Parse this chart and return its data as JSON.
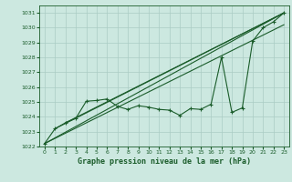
{
  "xlabel": "Graphe pression niveau de la mer (hPa)",
  "xlim": [
    -0.5,
    23.5
  ],
  "ylim": [
    1022,
    1031.5
  ],
  "yticks": [
    1022,
    1023,
    1024,
    1025,
    1026,
    1027,
    1028,
    1029,
    1030,
    1031
  ],
  "xticks": [
    0,
    1,
    2,
    3,
    4,
    5,
    6,
    7,
    8,
    9,
    10,
    11,
    12,
    13,
    14,
    15,
    16,
    17,
    18,
    19,
    20,
    21,
    22,
    23
  ],
  "bg_color": "#cce8e0",
  "grid_color": "#aaccC4",
  "line_color": "#1a5c2a",
  "data_x": [
    0,
    1,
    2,
    3,
    4,
    5,
    6,
    7,
    8,
    9,
    10,
    11,
    12,
    13,
    14,
    15,
    16,
    17,
    18,
    19,
    20,
    21,
    22,
    23
  ],
  "data_y": [
    1022.2,
    1023.2,
    1023.6,
    1023.9,
    1025.05,
    1025.1,
    1025.2,
    1024.7,
    1024.5,
    1024.75,
    1024.65,
    1024.5,
    1024.45,
    1024.1,
    1024.55,
    1024.5,
    1024.85,
    1028.0,
    1024.3,
    1024.6,
    1029.1,
    1030.0,
    1030.4,
    1031.0
  ],
  "reg_lines": [
    [
      [
        0,
        23
      ],
      [
        1022.2,
        1031.0
      ]
    ],
    [
      [
        0,
        23
      ],
      [
        1022.2,
        1030.2
      ]
    ],
    [
      [
        1,
        23
      ],
      [
        1023.2,
        1031.0
      ]
    ],
    [
      [
        2,
        23
      ],
      [
        1023.6,
        1031.0
      ]
    ]
  ]
}
